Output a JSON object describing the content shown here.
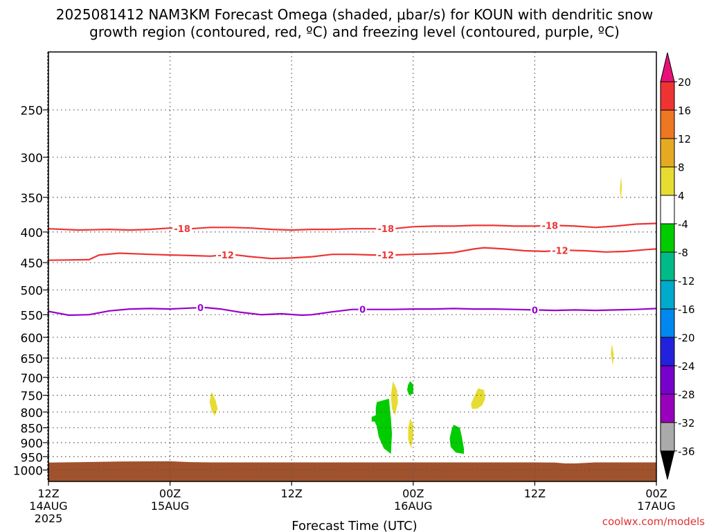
{
  "chart_data": {
    "type": "heatmap",
    "title_line1": "2025081412 NAM3KM Forecast Omega (shaded, μbar/s) for KOUN with dendritic snow",
    "title_line2": "growth region (contoured, red, ºC) and freezing level (contoured, purple, ºC)",
    "xlabel": "Forecast Time (UTC)",
    "credit": "coolwx.com/models",
    "x_range_hours": [
      0,
      60
    ],
    "y_range_hPa": [
      200,
      1045
    ],
    "y_scale": "log-pressure",
    "grid": "dotted",
    "x_ticks": [
      {
        "hour": 0,
        "label": "12Z",
        "sub": "14AUG",
        "sub2": "2025"
      },
      {
        "hour": 12,
        "label": "00Z",
        "sub": "15AUG"
      },
      {
        "hour": 24,
        "label": "12Z"
      },
      {
        "hour": 36,
        "label": "00Z",
        "sub": "16AUG"
      },
      {
        "hour": 48,
        "label": "12Z"
      },
      {
        "hour": 60,
        "label": "00Z",
        "sub": "17AUG"
      }
    ],
    "y_ticks": [
      250,
      300,
      350,
      400,
      450,
      500,
      550,
      600,
      650,
      700,
      750,
      800,
      850,
      900,
      950,
      1000
    ],
    "contours": [
      {
        "level": "-18",
        "color": "#ee3333",
        "points": [
          [
            0,
            395
          ],
          [
            3,
            397
          ],
          [
            6,
            396
          ],
          [
            8,
            397
          ],
          [
            10,
            396
          ],
          [
            12,
            394
          ],
          [
            14,
            395
          ],
          [
            16,
            393
          ],
          [
            18,
            393
          ],
          [
            20,
            394
          ],
          [
            22,
            396
          ],
          [
            24,
            397
          ],
          [
            26,
            396
          ],
          [
            28,
            396
          ],
          [
            30,
            395
          ],
          [
            32,
            395
          ],
          [
            34,
            395
          ],
          [
            36,
            392
          ],
          [
            38,
            391
          ],
          [
            40,
            391
          ],
          [
            42,
            390
          ],
          [
            44,
            390
          ],
          [
            46,
            391
          ],
          [
            48,
            391
          ],
          [
            50,
            390
          ],
          [
            52,
            391
          ],
          [
            54,
            393
          ],
          [
            56,
            391
          ],
          [
            58,
            388
          ],
          [
            60,
            387
          ]
        ],
        "labels": [
          {
            "hour": 13.2,
            "text": "-18"
          },
          {
            "hour": 33.3,
            "text": "-18"
          },
          {
            "hour": 49.5,
            "text": "-18"
          }
        ]
      },
      {
        "level": "-12",
        "color": "#ee3333",
        "points": [
          [
            0,
            446
          ],
          [
            4,
            445
          ],
          [
            5,
            437
          ],
          [
            7,
            434
          ],
          [
            10,
            436
          ],
          [
            12,
            437
          ],
          [
            14,
            438
          ],
          [
            16,
            439
          ],
          [
            18,
            436
          ],
          [
            20,
            440
          ],
          [
            22,
            443
          ],
          [
            24,
            442
          ],
          [
            26,
            440
          ],
          [
            28,
            436
          ],
          [
            30,
            436
          ],
          [
            32,
            437
          ],
          [
            34,
            437
          ],
          [
            36,
            436
          ],
          [
            38,
            435
          ],
          [
            40,
            433
          ],
          [
            42,
            427
          ],
          [
            43,
            425
          ],
          [
            45,
            427
          ],
          [
            47,
            430
          ],
          [
            49,
            431
          ],
          [
            51,
            429
          ],
          [
            53,
            430
          ],
          [
            55,
            432
          ],
          [
            57,
            431
          ],
          [
            59,
            428
          ],
          [
            60,
            427
          ]
        ],
        "labels": [
          {
            "hour": 17.5,
            "text": "-12"
          },
          {
            "hour": 33.3,
            "text": "-12"
          },
          {
            "hour": 50.5,
            "text": "-12"
          }
        ]
      },
      {
        "level": "0",
        "color": "#9900cc",
        "points": [
          [
            0,
            543
          ],
          [
            2,
            551
          ],
          [
            4,
            550
          ],
          [
            6,
            542
          ],
          [
            8,
            538
          ],
          [
            10,
            537
          ],
          [
            12,
            538
          ],
          [
            14,
            536
          ],
          [
            15.5,
            535
          ],
          [
            17,
            538
          ],
          [
            19,
            545
          ],
          [
            21,
            550
          ],
          [
            23,
            548
          ],
          [
            25,
            551
          ],
          [
            26,
            550
          ],
          [
            28,
            544
          ],
          [
            30,
            539
          ],
          [
            32,
            539
          ],
          [
            34,
            539
          ],
          [
            36,
            538
          ],
          [
            38,
            538
          ],
          [
            40,
            537
          ],
          [
            42,
            538
          ],
          [
            44,
            538
          ],
          [
            46,
            539
          ],
          [
            48,
            540
          ],
          [
            50,
            541
          ],
          [
            52,
            540
          ],
          [
            54,
            541
          ],
          [
            56,
            540
          ],
          [
            58,
            539
          ],
          [
            60,
            537
          ]
        ],
        "labels": [
          {
            "hour": 15,
            "text": "0"
          },
          {
            "hour": 31,
            "text": "0"
          },
          {
            "hour": 48,
            "text": "0"
          }
        ]
      }
    ],
    "shaded_areas": [
      {
        "color": "#e6dc32",
        "points": [
          [
            16.1,
            740
          ],
          [
            16.5,
            765
          ],
          [
            16.7,
            790
          ],
          [
            16.4,
            812
          ],
          [
            16.1,
            795
          ],
          [
            15.9,
            770
          ]
        ]
      },
      {
        "color": "#00cc00",
        "points": [
          [
            32.4,
            770
          ],
          [
            33.6,
            760
          ],
          [
            33.8,
            820
          ],
          [
            33.9,
            870
          ],
          [
            33.8,
            940
          ],
          [
            33.1,
            920
          ],
          [
            32.6,
            880
          ],
          [
            32.4,
            845
          ],
          [
            32.2,
            830
          ],
          [
            31.9,
            830
          ],
          [
            31.9,
            815
          ],
          [
            32.3,
            810
          ],
          [
            32.3,
            790
          ]
        ]
      },
      {
        "color": "#e6dc32",
        "points": [
          [
            34.0,
            710
          ],
          [
            34.4,
            735
          ],
          [
            34.5,
            770
          ],
          [
            34.2,
            810
          ],
          [
            33.9,
            790
          ],
          [
            33.8,
            750
          ]
        ]
      },
      {
        "color": "#00cc00",
        "points": [
          [
            35.7,
            710
          ],
          [
            36.0,
            720
          ],
          [
            36.0,
            745
          ],
          [
            35.6,
            750
          ],
          [
            35.4,
            735
          ],
          [
            35.5,
            720
          ]
        ]
      },
      {
        "color": "#e6dc32",
        "points": [
          [
            35.7,
            820
          ],
          [
            36.0,
            840
          ],
          [
            36.0,
            880
          ],
          [
            35.8,
            920
          ],
          [
            35.5,
            890
          ],
          [
            35.5,
            850
          ]
        ]
      },
      {
        "color": "#00cc00",
        "points": [
          [
            40.0,
            840
          ],
          [
            40.6,
            850
          ],
          [
            40.8,
            880
          ],
          [
            41.0,
            920
          ],
          [
            41.0,
            940
          ],
          [
            40.2,
            935
          ],
          [
            39.7,
            915
          ],
          [
            39.6,
            885
          ],
          [
            39.8,
            855
          ]
        ]
      },
      {
        "color": "#e6dc32",
        "points": [
          [
            42.4,
            730
          ],
          [
            43.0,
            735
          ],
          [
            43.1,
            760
          ],
          [
            42.8,
            780
          ],
          [
            42.3,
            790
          ],
          [
            41.8,
            790
          ],
          [
            41.7,
            775
          ],
          [
            42.0,
            755
          ]
        ]
      },
      {
        "color": "#e6dc32",
        "points": [
          [
            56.5,
            323
          ],
          [
            56.6,
            335
          ],
          [
            56.5,
            355
          ],
          [
            56.4,
            340
          ]
        ]
      },
      {
        "color": "#e6dc32",
        "points": [
          [
            55.6,
            615
          ],
          [
            55.8,
            640
          ],
          [
            55.7,
            670
          ],
          [
            55.5,
            640
          ]
        ]
      }
    ],
    "ground_color": "#a0522d",
    "ground_top_hPa": [
      [
        0,
        972
      ],
      [
        7,
        968
      ],
      [
        12,
        967
      ],
      [
        14,
        970
      ],
      [
        16,
        971
      ],
      [
        30,
        971
      ],
      [
        48,
        971
      ],
      [
        50,
        972
      ],
      [
        51,
        975
      ],
      [
        52,
        975
      ],
      [
        54,
        971
      ],
      [
        60,
        971
      ]
    ],
    "colorbar": {
      "colors": [
        "#aaaaaa",
        "#9900bb",
        "#7700cc",
        "#2222dd",
        "#0088ee",
        "#00aacc",
        "#00bb88",
        "#00cc00",
        "#ffffff",
        "#e6dc32",
        "#e6aa22",
        "#ee7722",
        "#ee3333"
      ],
      "low_cap_color": "#000000",
      "high_cap_color": "#e8117a",
      "labels": [
        "-36",
        "-32",
        "-28",
        "-24",
        "-20",
        "-16",
        "-12",
        "-8",
        "-4",
        "4",
        "8",
        "12",
        "16",
        "20"
      ]
    }
  }
}
